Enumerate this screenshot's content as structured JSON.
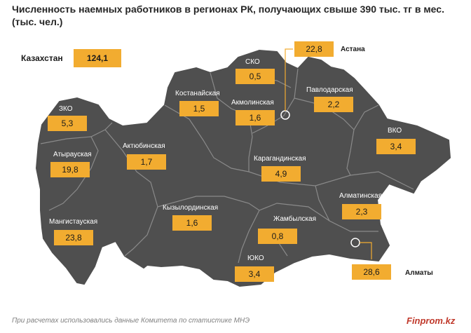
{
  "title": "Численность наемных работников в регионах РК, получающих свыше 390 тыс. тг в мес. (тыс. чел.)",
  "total": {
    "label": "Казахстан",
    "value": "124,1"
  },
  "regions": [
    {
      "name": "СКО",
      "value": "0,5"
    },
    {
      "name": "Костанайская",
      "value": "1,5"
    },
    {
      "name": "Акмолинская",
      "value": "1,6"
    },
    {
      "name": "Павлодарская",
      "value": "2,2"
    },
    {
      "name": "ЗКО",
      "value": "5,3"
    },
    {
      "name": "ВКО",
      "value": "3,4"
    },
    {
      "name": "Атырауская",
      "value": "19,8"
    },
    {
      "name": "Актюбинская",
      "value": "1,7"
    },
    {
      "name": "Карагандинская",
      "value": "4,9"
    },
    {
      "name": "Алматинская",
      "value": "2,3"
    },
    {
      "name": "Кызылординская",
      "value": "1,6"
    },
    {
      "name": "Мангистауская",
      "value": "23,8"
    },
    {
      "name": "Жамбылская",
      "value": "0,8"
    },
    {
      "name": "ЮКО",
      "value": "3,4"
    }
  ],
  "cities": [
    {
      "name": "Астана",
      "value": "22,8"
    },
    {
      "name": "Алматы",
      "value": "28,6"
    }
  ],
  "footer": {
    "note": "При расчетах использовались данные Комитета по статистике МНЭ",
    "brand": "Finprom.kz"
  },
  "colors": {
    "region_fill": "#4f4f4f",
    "border": "#8a8a8a",
    "value_box": "#f2ac30",
    "brand": "#c0392b"
  }
}
